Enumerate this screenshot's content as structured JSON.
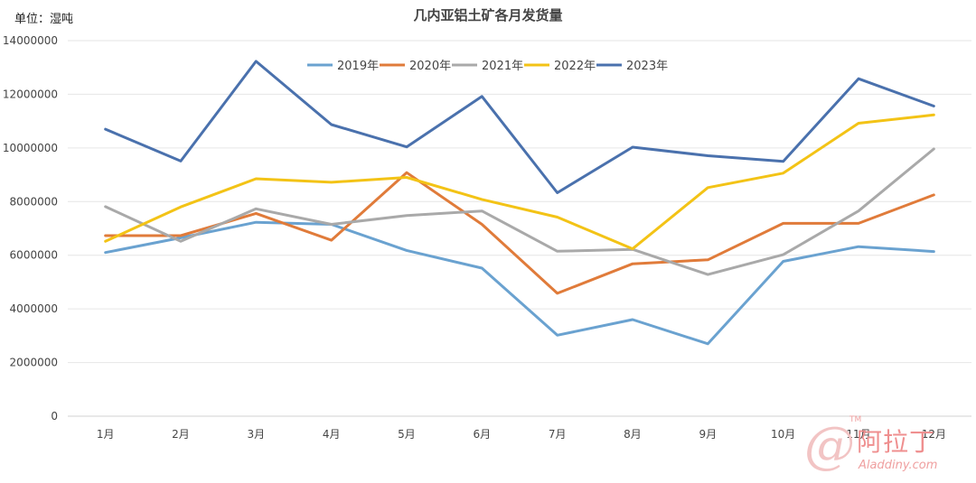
{
  "unit_label": "单位：湿吨",
  "watermark": {
    "tm": "TM",
    "name": "阿拉丁",
    "site": "Aladdiny.com"
  },
  "chart_data": {
    "type": "line",
    "title": "几内亚铝土矿各月发货量",
    "xlabel": "",
    "ylabel": "",
    "categories": [
      "1月",
      "2月",
      "3月",
      "4月",
      "5月",
      "6月",
      "7月",
      "8月",
      "9月",
      "10月",
      "11月",
      "12月"
    ],
    "ylim": [
      0,
      14000000
    ],
    "yticks": [
      0,
      2000000,
      4000000,
      6000000,
      8000000,
      10000000,
      12000000,
      14000000
    ],
    "grid": true,
    "legend_position": "top",
    "series": [
      {
        "name": "2019年",
        "color": "#6aa2d0",
        "values": [
          6100000,
          6650000,
          7230000,
          7150000,
          6180000,
          5520000,
          3020000,
          3600000,
          2700000,
          5770000,
          6320000,
          6140000
        ]
      },
      {
        "name": "2020年",
        "color": "#e07b3a",
        "values": [
          6730000,
          6730000,
          7560000,
          6560000,
          9080000,
          7150000,
          4580000,
          5680000,
          5830000,
          7190000,
          7190000,
          8250000
        ]
      },
      {
        "name": "2021年",
        "color": "#a9a9a9",
        "values": [
          7810000,
          6520000,
          7730000,
          7150000,
          7480000,
          7650000,
          6150000,
          6220000,
          5280000,
          6020000,
          7650000,
          9960000
        ]
      },
      {
        "name": "2022年",
        "color": "#f3c316",
        "values": [
          6520000,
          7800000,
          8850000,
          8720000,
          8900000,
          8080000,
          7420000,
          6240000,
          8520000,
          9060000,
          10920000,
          11230000
        ]
      },
      {
        "name": "2023年",
        "color": "#4a71ad",
        "values": [
          10700000,
          9510000,
          13230000,
          10870000,
          10040000,
          11920000,
          8330000,
          10030000,
          9710000,
          9500000,
          12580000,
          11560000
        ]
      }
    ]
  }
}
